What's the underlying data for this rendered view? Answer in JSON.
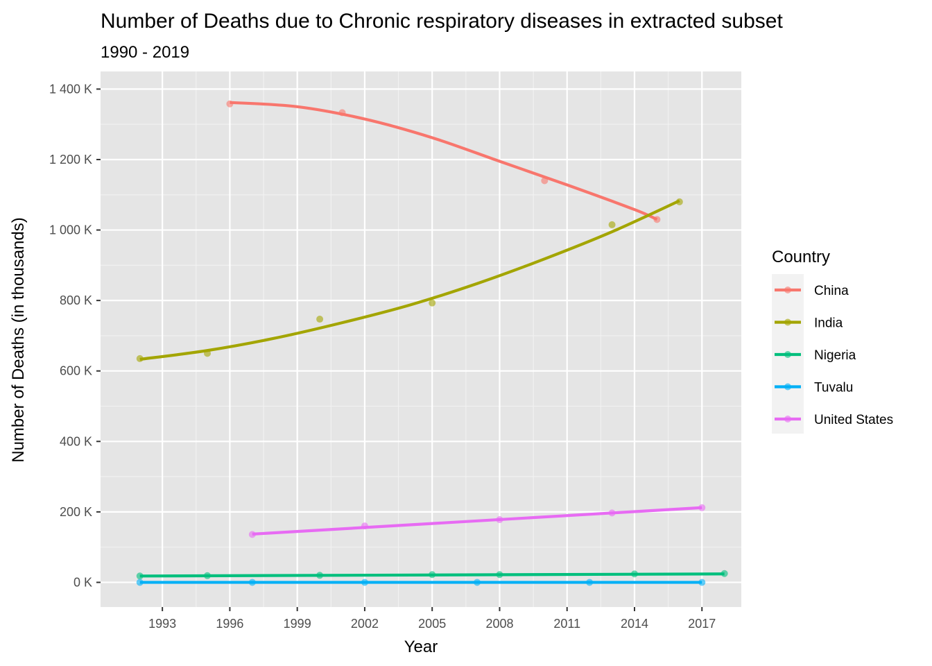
{
  "chart_data": {
    "type": "line",
    "title": "Number of Deaths due to Chronic respiratory diseases in extracted subset",
    "subtitle": "1990 - 2019",
    "xlabel": "Year",
    "ylabel": "Number of Deaths (in thousands)",
    "xlim": [
      1990.25,
      2018.75
    ],
    "ylim": [
      -70000,
      1450000
    ],
    "x_ticks": [
      1993,
      1996,
      1999,
      2002,
      2005,
      2008,
      2011,
      2014,
      2017
    ],
    "x_tick_labels": [
      "1993",
      "1996",
      "1999",
      "2002",
      "2005",
      "2008",
      "2011",
      "2014",
      "2017"
    ],
    "y_ticks": [
      0,
      200000,
      400000,
      600000,
      800000,
      1000000,
      1200000,
      1400000
    ],
    "y_tick_labels": [
      "0 K",
      "200 K",
      "400 K",
      "600 K",
      "800 K",
      "1 000 K",
      "1 200 K",
      "1 400 K"
    ],
    "grid": true,
    "legend": {
      "title": "Country",
      "position": "right"
    },
    "series": [
      {
        "name": "China",
        "color": "#F8766D",
        "points": [
          [
            1996,
            1358000
          ],
          [
            2001,
            1333000
          ],
          [
            2010,
            1140000
          ],
          [
            2015,
            1030000
          ]
        ],
        "trend": [
          [
            1996,
            1362000
          ],
          [
            1999,
            1350000
          ],
          [
            2002,
            1315000
          ],
          [
            2005,
            1262000
          ],
          [
            2008,
            1195000
          ],
          [
            2011,
            1128000
          ],
          [
            2014,
            1058000
          ],
          [
            2015,
            1030000
          ]
        ]
      },
      {
        "name": "India",
        "color": "#A3A500",
        "points": [
          [
            1992,
            635000
          ],
          [
            1995,
            650000
          ],
          [
            2000,
            747000
          ],
          [
            2005,
            793000
          ],
          [
            2013,
            1015000
          ],
          [
            2016,
            1080000
          ]
        ],
        "trend": [
          [
            1992,
            633000
          ],
          [
            1995,
            658000
          ],
          [
            1998,
            693000
          ],
          [
            2001,
            737000
          ],
          [
            2004,
            787000
          ],
          [
            2007,
            848000
          ],
          [
            2010,
            918000
          ],
          [
            2013,
            995000
          ],
          [
            2016,
            1083000
          ]
        ]
      },
      {
        "name": "Nigeria",
        "color": "#00BF7D",
        "points": [
          [
            1992,
            18000
          ],
          [
            1995,
            19000
          ],
          [
            2000,
            20000
          ],
          [
            2005,
            22000
          ],
          [
            2008,
            22000
          ],
          [
            2014,
            24000
          ],
          [
            2018,
            25000
          ]
        ],
        "trend": [
          [
            1992,
            18000
          ],
          [
            2018,
            24000
          ]
        ]
      },
      {
        "name": "Tuvalu",
        "color": "#00B0F6",
        "points": [
          [
            1992,
            0
          ],
          [
            1997,
            0
          ],
          [
            2002,
            0
          ],
          [
            2007,
            0
          ],
          [
            2012,
            0
          ],
          [
            2017,
            0
          ]
        ],
        "trend": [
          [
            1992,
            0
          ],
          [
            2017,
            0
          ]
        ]
      },
      {
        "name": "United States",
        "color": "#E76BF3",
        "points": [
          [
            1997,
            136000
          ],
          [
            2002,
            160000
          ],
          [
            2008,
            178000
          ],
          [
            2013,
            197000
          ],
          [
            2017,
            212000
          ]
        ],
        "trend": [
          [
            1997,
            137000
          ],
          [
            2017,
            212000
          ]
        ]
      }
    ]
  }
}
